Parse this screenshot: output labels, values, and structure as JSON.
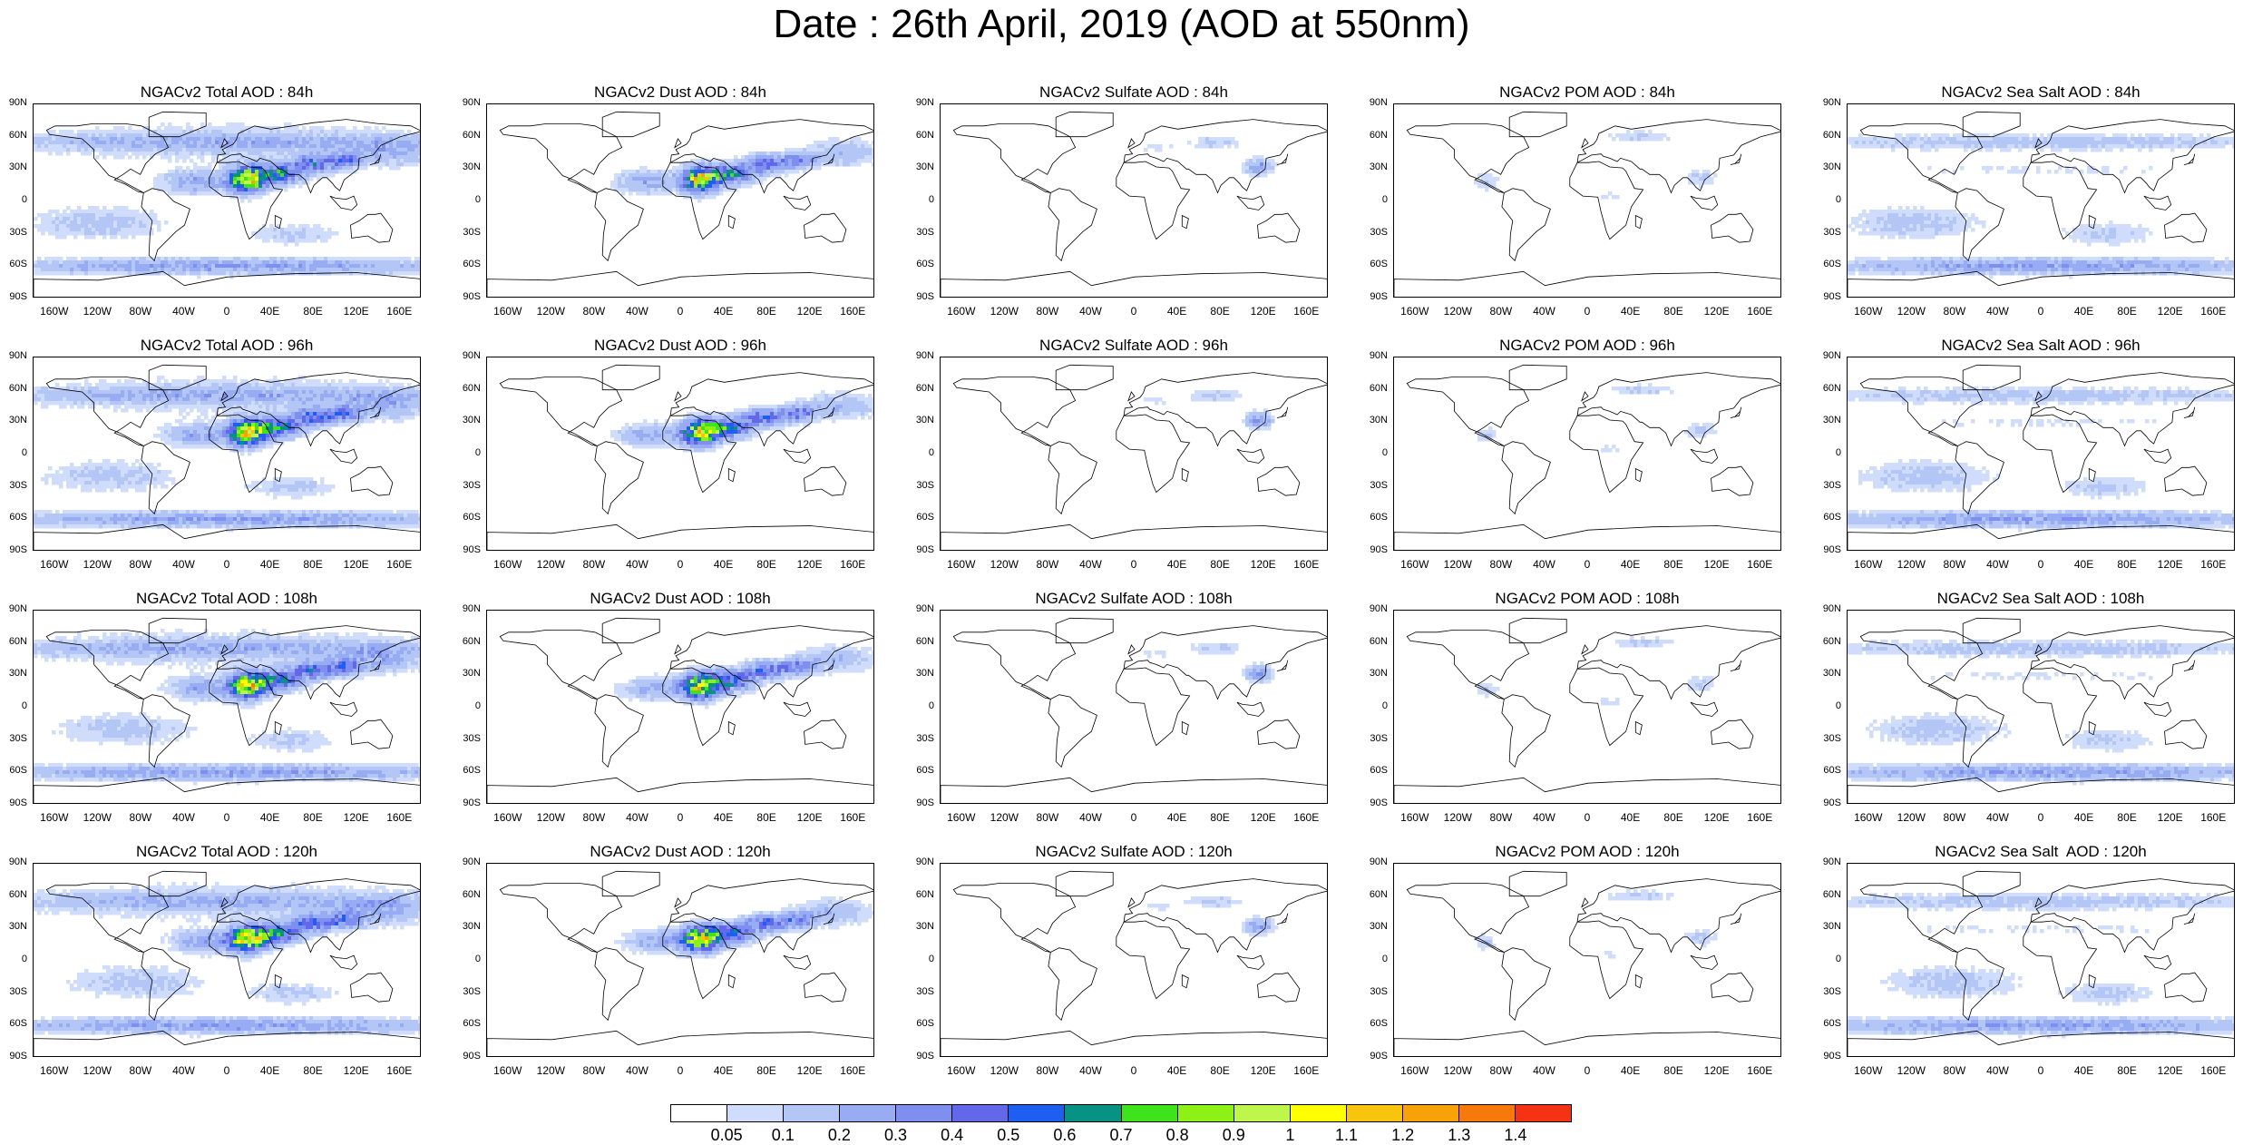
{
  "title": "Date : 26th April, 2019 (AOD at 550nm)",
  "lat_ticks": [
    "90N",
    "60N",
    "30N",
    "0",
    "30S",
    "60S",
    "90S"
  ],
  "lon_ticks": [
    "160W",
    "120W",
    "80W",
    "40W",
    "0",
    "40E",
    "80E",
    "120E",
    "160E"
  ],
  "species": [
    "total",
    "dust",
    "sulfate",
    "pom",
    "seasalt"
  ],
  "panel_titles": [
    [
      "NGACv2 Total AOD : 84h",
      "NGACv2 Dust AOD : 84h",
      "NGACv2 Sulfate AOD : 84h",
      "NGACv2 POM AOD : 84h",
      "NGACv2 Sea Salt AOD : 84h"
    ],
    [
      "NGACv2 Total AOD : 96h",
      "NGACv2 Dust AOD : 96h",
      "NGACv2 Sulfate AOD : 96h",
      "NGACv2 POM AOD : 96h",
      "NGACv2 Sea Salt AOD : 96h"
    ],
    [
      "NGACv2 Total AOD : 108h",
      "NGACv2 Dust AOD : 108h",
      "NGACv2 Sulfate AOD : 108h",
      "NGACv2 POM AOD : 108h",
      "NGACv2 Sea Salt AOD : 108h"
    ],
    [
      "NGACv2 Total AOD : 120h",
      "NGACv2 Dust AOD : 120h",
      "NGACv2 Sulfate AOD : 120h",
      "NGACv2 POM AOD : 120h",
      "NGACv2 Sea Salt  AOD : 120h"
    ]
  ],
  "colorbar": {
    "colors": [
      "#ffffff",
      "#d0dcfb",
      "#b4c6f6",
      "#97acf2",
      "#7f8ff0",
      "#6368ea",
      "#1e5ef0",
      "#089284",
      "#3ee31b",
      "#8df116",
      "#bef64b",
      "#ffff00",
      "#f9c40d",
      "#f8a20a",
      "#f7780b",
      "#f63214"
    ],
    "labels": [
      "0.05",
      "0.1",
      "0.2",
      "0.3",
      "0.4",
      "0.5",
      "0.6",
      "0.7",
      "0.8",
      "0.9",
      "1",
      "1.1",
      "1.2",
      "1.3",
      "1.4"
    ]
  }
}
